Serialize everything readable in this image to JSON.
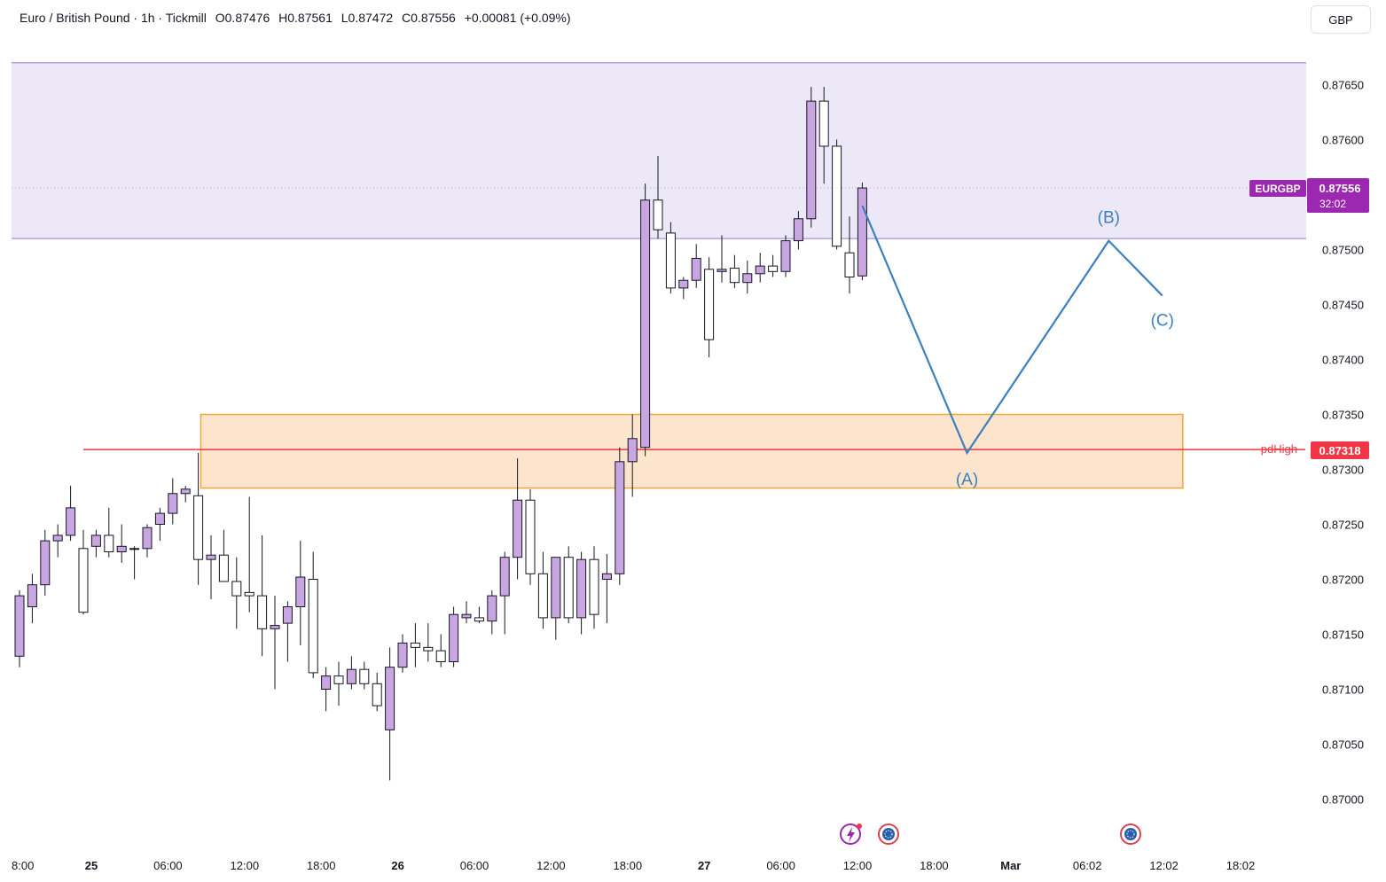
{
  "header": {
    "symbol": "Euro / British Pound · 1h · Tickmill",
    "open": "O0.87476",
    "high": "H0.87561",
    "low": "L0.87472",
    "close": "C0.87556",
    "change": "+0.00081 (+0.09%)"
  },
  "currency_label": "GBP",
  "price_tag": {
    "symbol": "EURGBP",
    "price": "0.87556",
    "countdown": "32:02"
  },
  "pdhigh": {
    "label": "pdHigh",
    "price": "0.87318",
    "value": 0.87318
  },
  "wave_labels": {
    "a": "(A)",
    "b": "(B)",
    "c": "(C)"
  },
  "colors": {
    "bull": "#c9a6e2",
    "bear": "#ffffff",
    "wick": "#131722",
    "resistance_zone": "#ede8f8",
    "resistance_border": "#b3a3e3",
    "demand_zone": "#fde5cd",
    "demand_border": "#f2a33b",
    "pdhigh_line": "#f23645",
    "wave_line": "#3d80bd",
    "price_tag": "#9c27b0"
  },
  "chart_data": {
    "type": "candlestick",
    "timeframe": "1h",
    "y_ticks": [
      0.877,
      0.8765,
      0.876,
      0.8755,
      0.875,
      0.8745,
      0.874,
      0.8735,
      0.873,
      0.8725,
      0.872,
      0.8715,
      0.871,
      0.8705,
      0.87
    ],
    "y_tick_labels": [
      "0.87650",
      "0.87600",
      "0.87500",
      "0.87450",
      "0.87400",
      "0.87350",
      "0.87300",
      "0.87250",
      "0.87200",
      "0.87150",
      "0.87100",
      "0.87050",
      "0.87000"
    ],
    "y_tick_values": [
      0.8765,
      0.876,
      0.875,
      0.8745,
      0.874,
      0.8735,
      0.873,
      0.8725,
      0.872,
      0.8715,
      0.871,
      0.8705,
      0.87
    ],
    "ylim": [
      0.8696,
      0.8778
    ],
    "x_tick_labels": [
      "8:00",
      "25",
      "06:00",
      "12:00",
      "18:00",
      "26",
      "06:00",
      "12:00",
      "18:00",
      "27",
      "06:00",
      "12:00",
      "18:00",
      "Mar",
      "06:02",
      "12:02",
      "18:02"
    ],
    "x_tick_bars": [
      -1,
      5,
      11,
      17,
      23,
      29,
      35,
      41,
      47,
      53,
      59,
      65,
      71,
      77,
      83,
      89,
      95
    ],
    "candles": [
      {
        "o": 0.8713,
        "h": 0.8719,
        "l": 0.8712,
        "c": 0.87185
      },
      {
        "o": 0.87175,
        "h": 0.87205,
        "l": 0.8716,
        "c": 0.87195
      },
      {
        "o": 0.87195,
        "h": 0.87245,
        "l": 0.87185,
        "c": 0.87235
      },
      {
        "o": 0.87235,
        "h": 0.8725,
        "l": 0.8722,
        "c": 0.8724
      },
      {
        "o": 0.8724,
        "h": 0.87285,
        "l": 0.87235,
        "c": 0.87265
      },
      {
        "o": 0.87228,
        "h": 0.87245,
        "l": 0.87168,
        "c": 0.8717
      },
      {
        "o": 0.8723,
        "h": 0.87245,
        "l": 0.8722,
        "c": 0.8724
      },
      {
        "o": 0.8724,
        "h": 0.87265,
        "l": 0.8722,
        "c": 0.87225
      },
      {
        "o": 0.87225,
        "h": 0.8725,
        "l": 0.87215,
        "c": 0.8723
      },
      {
        "o": 0.87228,
        "h": 0.8723,
        "l": 0.872,
        "c": 0.87228
      },
      {
        "o": 0.87228,
        "h": 0.8725,
        "l": 0.8722,
        "c": 0.87247
      },
      {
        "o": 0.8725,
        "h": 0.87265,
        "l": 0.87235,
        "c": 0.8726
      },
      {
        "o": 0.8726,
        "h": 0.87292,
        "l": 0.8725,
        "c": 0.87278
      },
      {
        "o": 0.87278,
        "h": 0.87285,
        "l": 0.8727,
        "c": 0.87282
      },
      {
        "o": 0.87276,
        "h": 0.87315,
        "l": 0.87195,
        "c": 0.87218
      },
      {
        "o": 0.87218,
        "h": 0.8724,
        "l": 0.87182,
        "c": 0.87222
      },
      {
        "o": 0.87222,
        "h": 0.87245,
        "l": 0.872,
        "c": 0.87198
      },
      {
        "o": 0.87198,
        "h": 0.8722,
        "l": 0.87155,
        "c": 0.87185
      },
      {
        "o": 0.87188,
        "h": 0.87275,
        "l": 0.8717,
        "c": 0.87185
      },
      {
        "o": 0.87185,
        "h": 0.8724,
        "l": 0.8713,
        "c": 0.87155
      },
      {
        "o": 0.87155,
        "h": 0.87185,
        "l": 0.871,
        "c": 0.87158
      },
      {
        "o": 0.8716,
        "h": 0.8718,
        "l": 0.87125,
        "c": 0.87175
      },
      {
        "o": 0.87175,
        "h": 0.87235,
        "l": 0.8714,
        "c": 0.87202
      },
      {
        "o": 0.872,
        "h": 0.87225,
        "l": 0.8711,
        "c": 0.87115
      },
      {
        "o": 0.871,
        "h": 0.8712,
        "l": 0.8708,
        "c": 0.87112
      },
      {
        "o": 0.87112,
        "h": 0.87125,
        "l": 0.87085,
        "c": 0.87105
      },
      {
        "o": 0.87105,
        "h": 0.8713,
        "l": 0.871,
        "c": 0.87118
      },
      {
        "o": 0.87118,
        "h": 0.87125,
        "l": 0.871,
        "c": 0.87105
      },
      {
        "o": 0.87105,
        "h": 0.87115,
        "l": 0.8708,
        "c": 0.87085
      },
      {
        "o": 0.87063,
        "h": 0.87138,
        "l": 0.87017,
        "c": 0.8712
      },
      {
        "o": 0.8712,
        "h": 0.8715,
        "l": 0.87115,
        "c": 0.87142
      },
      {
        "o": 0.87142,
        "h": 0.8716,
        "l": 0.8712,
        "c": 0.87138
      },
      {
        "o": 0.87138,
        "h": 0.8716,
        "l": 0.87125,
        "c": 0.87135
      },
      {
        "o": 0.87135,
        "h": 0.8715,
        "l": 0.8712,
        "c": 0.87125
      },
      {
        "o": 0.87125,
        "h": 0.87175,
        "l": 0.8712,
        "c": 0.87168
      },
      {
        "o": 0.87165,
        "h": 0.8718,
        "l": 0.8716,
        "c": 0.87168
      },
      {
        "o": 0.87165,
        "h": 0.87175,
        "l": 0.8716,
        "c": 0.87162
      },
      {
        "o": 0.87162,
        "h": 0.8719,
        "l": 0.8715,
        "c": 0.87185
      },
      {
        "o": 0.87185,
        "h": 0.87225,
        "l": 0.8715,
        "c": 0.8722
      },
      {
        "o": 0.8722,
        "h": 0.8731,
        "l": 0.872,
        "c": 0.87272
      },
      {
        "o": 0.87272,
        "h": 0.87282,
        "l": 0.87195,
        "c": 0.87205
      },
      {
        "o": 0.87205,
        "h": 0.87225,
        "l": 0.87155,
        "c": 0.87165
      },
      {
        "o": 0.87165,
        "h": 0.8722,
        "l": 0.87145,
        "c": 0.8722
      },
      {
        "o": 0.8722,
        "h": 0.8723,
        "l": 0.8716,
        "c": 0.87165
      },
      {
        "o": 0.87165,
        "h": 0.87225,
        "l": 0.8715,
        "c": 0.87218
      },
      {
        "o": 0.87218,
        "h": 0.8723,
        "l": 0.87155,
        "c": 0.87168
      },
      {
        "o": 0.872,
        "h": 0.87223,
        "l": 0.8716,
        "c": 0.87205
      },
      {
        "o": 0.87205,
        "h": 0.8732,
        "l": 0.87195,
        "c": 0.87307
      },
      {
        "o": 0.87307,
        "h": 0.8735,
        "l": 0.87275,
        "c": 0.87328
      },
      {
        "o": 0.8732,
        "h": 0.8756,
        "l": 0.87312,
        "c": 0.87545
      },
      {
        "o": 0.87545,
        "h": 0.87585,
        "l": 0.8751,
        "c": 0.87518
      },
      {
        "o": 0.87515,
        "h": 0.87525,
        "l": 0.8746,
        "c": 0.87465
      },
      {
        "o": 0.87465,
        "h": 0.87475,
        "l": 0.87455,
        "c": 0.87472
      },
      {
        "o": 0.87472,
        "h": 0.87505,
        "l": 0.87465,
        "c": 0.87492
      },
      {
        "o": 0.87482,
        "h": 0.87493,
        "l": 0.87402,
        "c": 0.87418
      },
      {
        "o": 0.8748,
        "h": 0.87513,
        "l": 0.8747,
        "c": 0.87482
      },
      {
        "o": 0.87483,
        "h": 0.87495,
        "l": 0.87465,
        "c": 0.8747
      },
      {
        "o": 0.8747,
        "h": 0.8749,
        "l": 0.8746,
        "c": 0.87478
      },
      {
        "o": 0.87478,
        "h": 0.87497,
        "l": 0.8747,
        "c": 0.87485
      },
      {
        "o": 0.87485,
        "h": 0.87495,
        "l": 0.87475,
        "c": 0.8748
      },
      {
        "o": 0.8748,
        "h": 0.87513,
        "l": 0.87475,
        "c": 0.87508
      },
      {
        "o": 0.87508,
        "h": 0.87535,
        "l": 0.875,
        "c": 0.87528
      },
      {
        "o": 0.87528,
        "h": 0.87648,
        "l": 0.8752,
        "c": 0.87635
      },
      {
        "o": 0.87635,
        "h": 0.87648,
        "l": 0.8756,
        "c": 0.87594
      },
      {
        "o": 0.87594,
        "h": 0.876,
        "l": 0.875,
        "c": 0.87503
      },
      {
        "o": 0.87497,
        "h": 0.8753,
        "l": 0.8746,
        "c": 0.87475
      },
      {
        "o": 0.87476,
        "h": 0.87561,
        "l": 0.87472,
        "c": 0.87556
      }
    ],
    "zones": [
      {
        "name": "resistance",
        "top": 0.8767,
        "bottom": 0.8751
      },
      {
        "name": "demand",
        "top": 0.8735,
        "bottom": 0.87283
      }
    ],
    "projection": {
      "labels": [
        "(A)",
        "(B)",
        "(C)"
      ],
      "points": [
        {
          "bar": 66,
          "price": 0.8754
        },
        {
          "bar": 74.2,
          "price": 0.87315
        },
        {
          "bar": 85.3,
          "price": 0.87508
        },
        {
          "bar": 89.5,
          "price": 0.87458
        }
      ]
    }
  }
}
